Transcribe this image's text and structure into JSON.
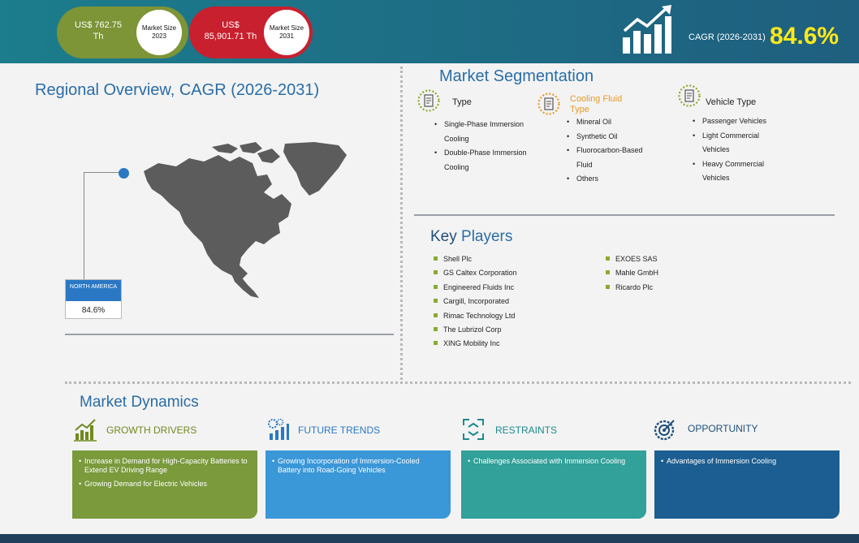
{
  "header": {
    "market_size_2023": {
      "value": "US$ 762.75 Th",
      "label": "Market Size 2023"
    },
    "market_size_2031": {
      "value": "US$ 85,901.71 Th",
      "label": "Market Size 2031"
    },
    "cagr_label": "CAGR (2026-2031)",
    "cagr_value": "84.6%",
    "icon": "growth-chart-icon",
    "colors": {
      "header_bg": "#1d6f86",
      "green": "#7d9437",
      "red": "#c8202e",
      "cagr_value": "#ffe81a"
    }
  },
  "regional": {
    "title": "Regional Overview, CAGR (2026-2031)",
    "region_name": "NORTH AMERICA",
    "region_value": "84.6%"
  },
  "segmentation": {
    "title": "Market Segmentation",
    "groups": [
      {
        "name": "Type",
        "icon": "type-doc-icon",
        "color": "#1f4f7a",
        "items": [
          "Single-Phase Immersion Cooling",
          "Double-Phase Immersion Cooling"
        ]
      },
      {
        "name": "Cooling Fluid Type",
        "icon": "fluid-doc-icon",
        "color": "#e69a25",
        "items": [
          "Mineral Oil",
          "Synthetic Oil",
          "Fluorocarbon-Based Fluid",
          "Others"
        ]
      },
      {
        "name": "Vehicle Type",
        "icon": "vehicle-doc-icon",
        "color": "#1f4f7a",
        "items": [
          "Passenger Vehicles",
          "Light Commercial Vehicles",
          "Heavy Commercial Vehicles"
        ]
      }
    ]
  },
  "key_players": {
    "title_part1": "Key",
    "title_part2": " Players",
    "column1": [
      "Shell Plc",
      "GS Caltex Corporation",
      "Engineered Fluids Inc",
      "Cargill, Incorporated",
      "Rimac Technology Ltd",
      "The Lubrizol Corp",
      "XING Mobility Inc"
    ],
    "column2": [
      "EXOES SAS",
      "Mahle GmbH",
      "Ricardo Plc"
    ]
  },
  "dynamics": {
    "title": "Market Dynamics",
    "sections": [
      {
        "name": "GROWTH DRIVERS",
        "icon": "bar-growth-icon",
        "head_color": "#6f8a1e",
        "card_color": "#7a9a3c",
        "items": [
          "Increase in Demand for High-Capacity Batteries to Extend EV Driving Range",
          "Growing Demand for Electric Vehicles"
        ]
      },
      {
        "name": "FUTURE TRENDS",
        "icon": "trend-gears-icon",
        "head_color": "#2a78c4",
        "card_color": "#3a97d8",
        "items": [
          "Growing Incorporation of Immersion-Cooled Battery into Road-Going Vehicles"
        ]
      },
      {
        "name": "RESTRAINTS",
        "icon": "restraint-arrows-icon",
        "head_color": "#1d8a8f",
        "card_color": "#31a199",
        "items": [
          "Challenges Associated with Immersion Cooling"
        ]
      },
      {
        "name": "OPPORTUNITY",
        "icon": "target-gear-icon",
        "head_color": "#1f4f7a",
        "card_color": "#1c5e91",
        "items": [
          "Advantages of Immersion Cooling"
        ]
      }
    ]
  }
}
